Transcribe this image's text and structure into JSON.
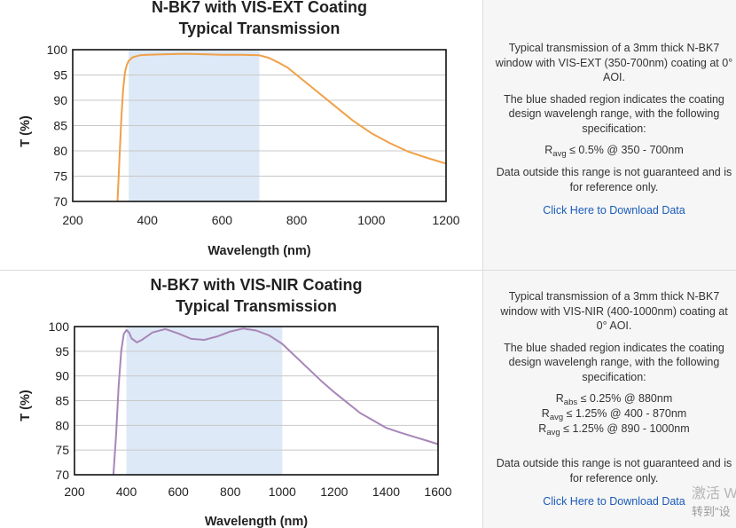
{
  "sections": [
    {
      "chart_data": {
        "type": "line",
        "title": [
          "N-BK7 with VIS-EXT Coating",
          "Typical Transmission"
        ],
        "xlabel": "Wavelength (nm)",
        "ylabel": "T (%)",
        "xlim": [
          200,
          1200
        ],
        "ylim": [
          70,
          100
        ],
        "x_ticks": [
          "200",
          "400",
          "600",
          "800",
          "1000",
          "1200"
        ],
        "y_ticks": [
          "70",
          "75",
          "80",
          "85",
          "90",
          "95",
          "100"
        ],
        "grid": "horizontal",
        "shaded_region": [
          350,
          700
        ],
        "shaded_color": "#dde9f6",
        "series": [
          {
            "color": "#f0a048",
            "x": [
              320,
              325,
              330,
              335,
              340,
              345,
              350,
              360,
              380,
              400,
              450,
              500,
              550,
              600,
              650,
              700,
              725,
              750,
              775,
              800,
              850,
              900,
              950,
              1000,
              1050,
              1100,
              1150,
              1200
            ],
            "y": [
              70,
              78,
              86,
              92,
              95.5,
              97,
              97.8,
              98.5,
              98.9,
              99,
              99.1,
              99.2,
              99.1,
              99,
              99,
              98.9,
              98.4,
              97.5,
              96.5,
              95,
              92,
              89,
              86,
              83.5,
              81.5,
              79.8,
              78.6,
              77.5
            ]
          }
        ]
      },
      "info": {
        "desc": "Typical transmission of a 3mm thick N-BK7 window with VIS-EXT (350-700nm) coating at 0° AOI.",
        "shade_note": "The blue shaded region indicates the coating design wavelengh range, with the following specification:",
        "specs": [
          {
            "sym": "R",
            "sub": "avg",
            "text": " ≤ 0.5% @ 350 - 700nm"
          }
        ],
        "disclaimer": "Data outside this range is not guaranteed and is for reference only.",
        "link": "Click Here to Download Data"
      }
    },
    {
      "chart_data": {
        "type": "line",
        "title": [
          "N-BK7 with VIS-NIR Coating",
          "Typical Transmission"
        ],
        "xlabel": "Wavelength (nm)",
        "ylabel": "T (%)",
        "xlim": [
          200,
          1600
        ],
        "ylim": [
          70,
          100
        ],
        "x_ticks": [
          "200",
          "400",
          "600",
          "800",
          "1000",
          "1200",
          "1400",
          "1600"
        ],
        "y_ticks": [
          "70",
          "75",
          "80",
          "85",
          "90",
          "95",
          "100"
        ],
        "grid": "horizontal",
        "shaded_region": [
          400,
          1000
        ],
        "shaded_color": "#dde9f6",
        "series": [
          {
            "color": "#a886b8",
            "x": [
              350,
              360,
              370,
              380,
              390,
              400,
              410,
              420,
              440,
              460,
              500,
              550,
              600,
              650,
              700,
              750,
              800,
              850,
              900,
              950,
              1000,
              1050,
              1100,
              1150,
              1200,
              1250,
              1300,
              1350,
              1400,
              1450,
              1500,
              1550,
              1600
            ],
            "y": [
              70,
              78,
              88,
              95,
              98.5,
              99.3,
              98.8,
              97.6,
              96.8,
              97.3,
              98.8,
              99.5,
              98.6,
              97.5,
              97.3,
              98,
              99,
              99.6,
              99.2,
              98.2,
              96.5,
              94,
              91.5,
              89,
              86.7,
              84.6,
              82.5,
              81,
              79.5,
              78.6,
              77.8,
              77,
              76.2
            ]
          }
        ]
      },
      "info": {
        "desc": "Typical transmission of a 3mm thick N-BK7 window with VIS-NIR (400-1000nm) coating at 0° AOI.",
        "shade_note": "The blue shaded region indicates the coating design wavelengh range, with the following specification:",
        "specs": [
          {
            "sym": "R",
            "sub": "abs",
            "text": " ≤ 0.25% @ 880nm"
          },
          {
            "sym": "R",
            "sub": "avg",
            "text": " ≤ 1.25% @ 400 - 870nm"
          },
          {
            "sym": "R",
            "sub": "avg",
            "text": " ≤ 1.25% @ 890 - 1000nm"
          }
        ],
        "disclaimer": "Data outside this range is not guaranteed and is for reference only.",
        "link": "Click Here to Download Data"
      }
    }
  ],
  "watermark": {
    "line1": "激活 W",
    "line2": "转到\"设"
  }
}
